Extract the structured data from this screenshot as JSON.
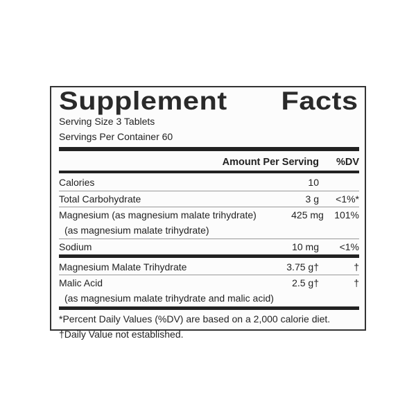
{
  "title_left": "Supplement",
  "title_right": "Facts",
  "serving_size": "Serving Size 3 Tablets",
  "servings_per_container": "Servings Per Container 60",
  "header": {
    "amount": "Amount Per Serving",
    "dv": "%DV"
  },
  "rows": [
    {
      "name": "Calories",
      "amount": "10",
      "dv": ""
    },
    {
      "name": "Total Carbohydrate",
      "amount": "3 g",
      "dv": "<1%*"
    },
    {
      "name": "Magnesium (as magnesium malate trihydrate)",
      "sub": "(as magnesium malate trihydrate)",
      "amount": "425 mg",
      "dv": "101%"
    },
    {
      "name": "Sodium",
      "amount": "10 mg",
      "dv": "<1%"
    },
    {
      "name": "Magnesium Malate Trihydrate",
      "amount": "3.75 g†",
      "dv": "†"
    },
    {
      "name": "Malic Acid",
      "sub": "(as magnesium malate trihydrate and malic acid)",
      "amount": "2.5 g†",
      "dv": "†"
    }
  ],
  "footnotes": [
    "*Percent Daily Values (%DV) are based on a 2,000 calorie diet.",
    "†Daily Value not established."
  ]
}
